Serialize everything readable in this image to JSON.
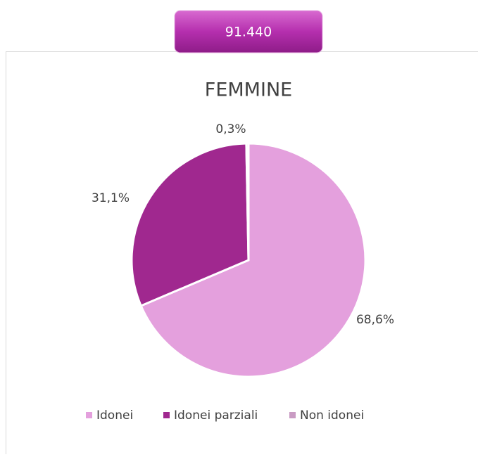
{
  "badge": "91.440",
  "chart_data": {
    "type": "pie",
    "title": "FEMMINE",
    "categories": [
      "Idonei",
      "Idonei parziali",
      "Non idonei"
    ],
    "values": [
      68.6,
      31.1,
      0.3
    ],
    "value_labels": [
      "68,6%",
      "31,1%",
      "0,3%"
    ],
    "colors": [
      "#e4a0dd",
      "#a0288f",
      "#c99bc3"
    ],
    "legend": "bottom"
  }
}
